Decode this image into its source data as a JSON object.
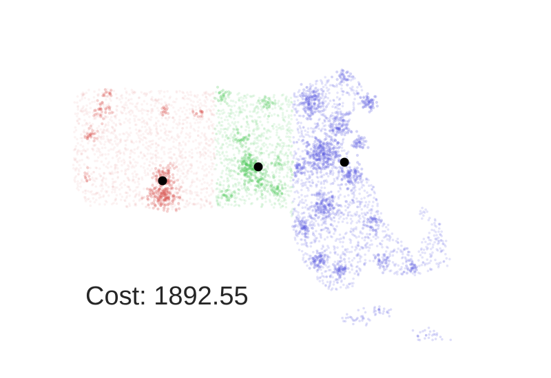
{
  "chart_data": {
    "type": "scatter",
    "title": "",
    "xlabel": "",
    "ylabel": "",
    "grid": false,
    "axes_visible": false,
    "annotation": "Cost: 1892.55",
    "cluster_colors": [
      "#d9534f",
      "#4cc95a",
      "#5c5ce0"
    ],
    "centroid_color": "#000000",
    "centroids": [
      {
        "cluster": 0,
        "x": -72.6,
        "y": 42.1
      },
      {
        "cluster": 1,
        "x": -71.8,
        "y": 42.28
      },
      {
        "cluster": 2,
        "x": -71.08,
        "y": 42.34
      }
    ]
  }
}
